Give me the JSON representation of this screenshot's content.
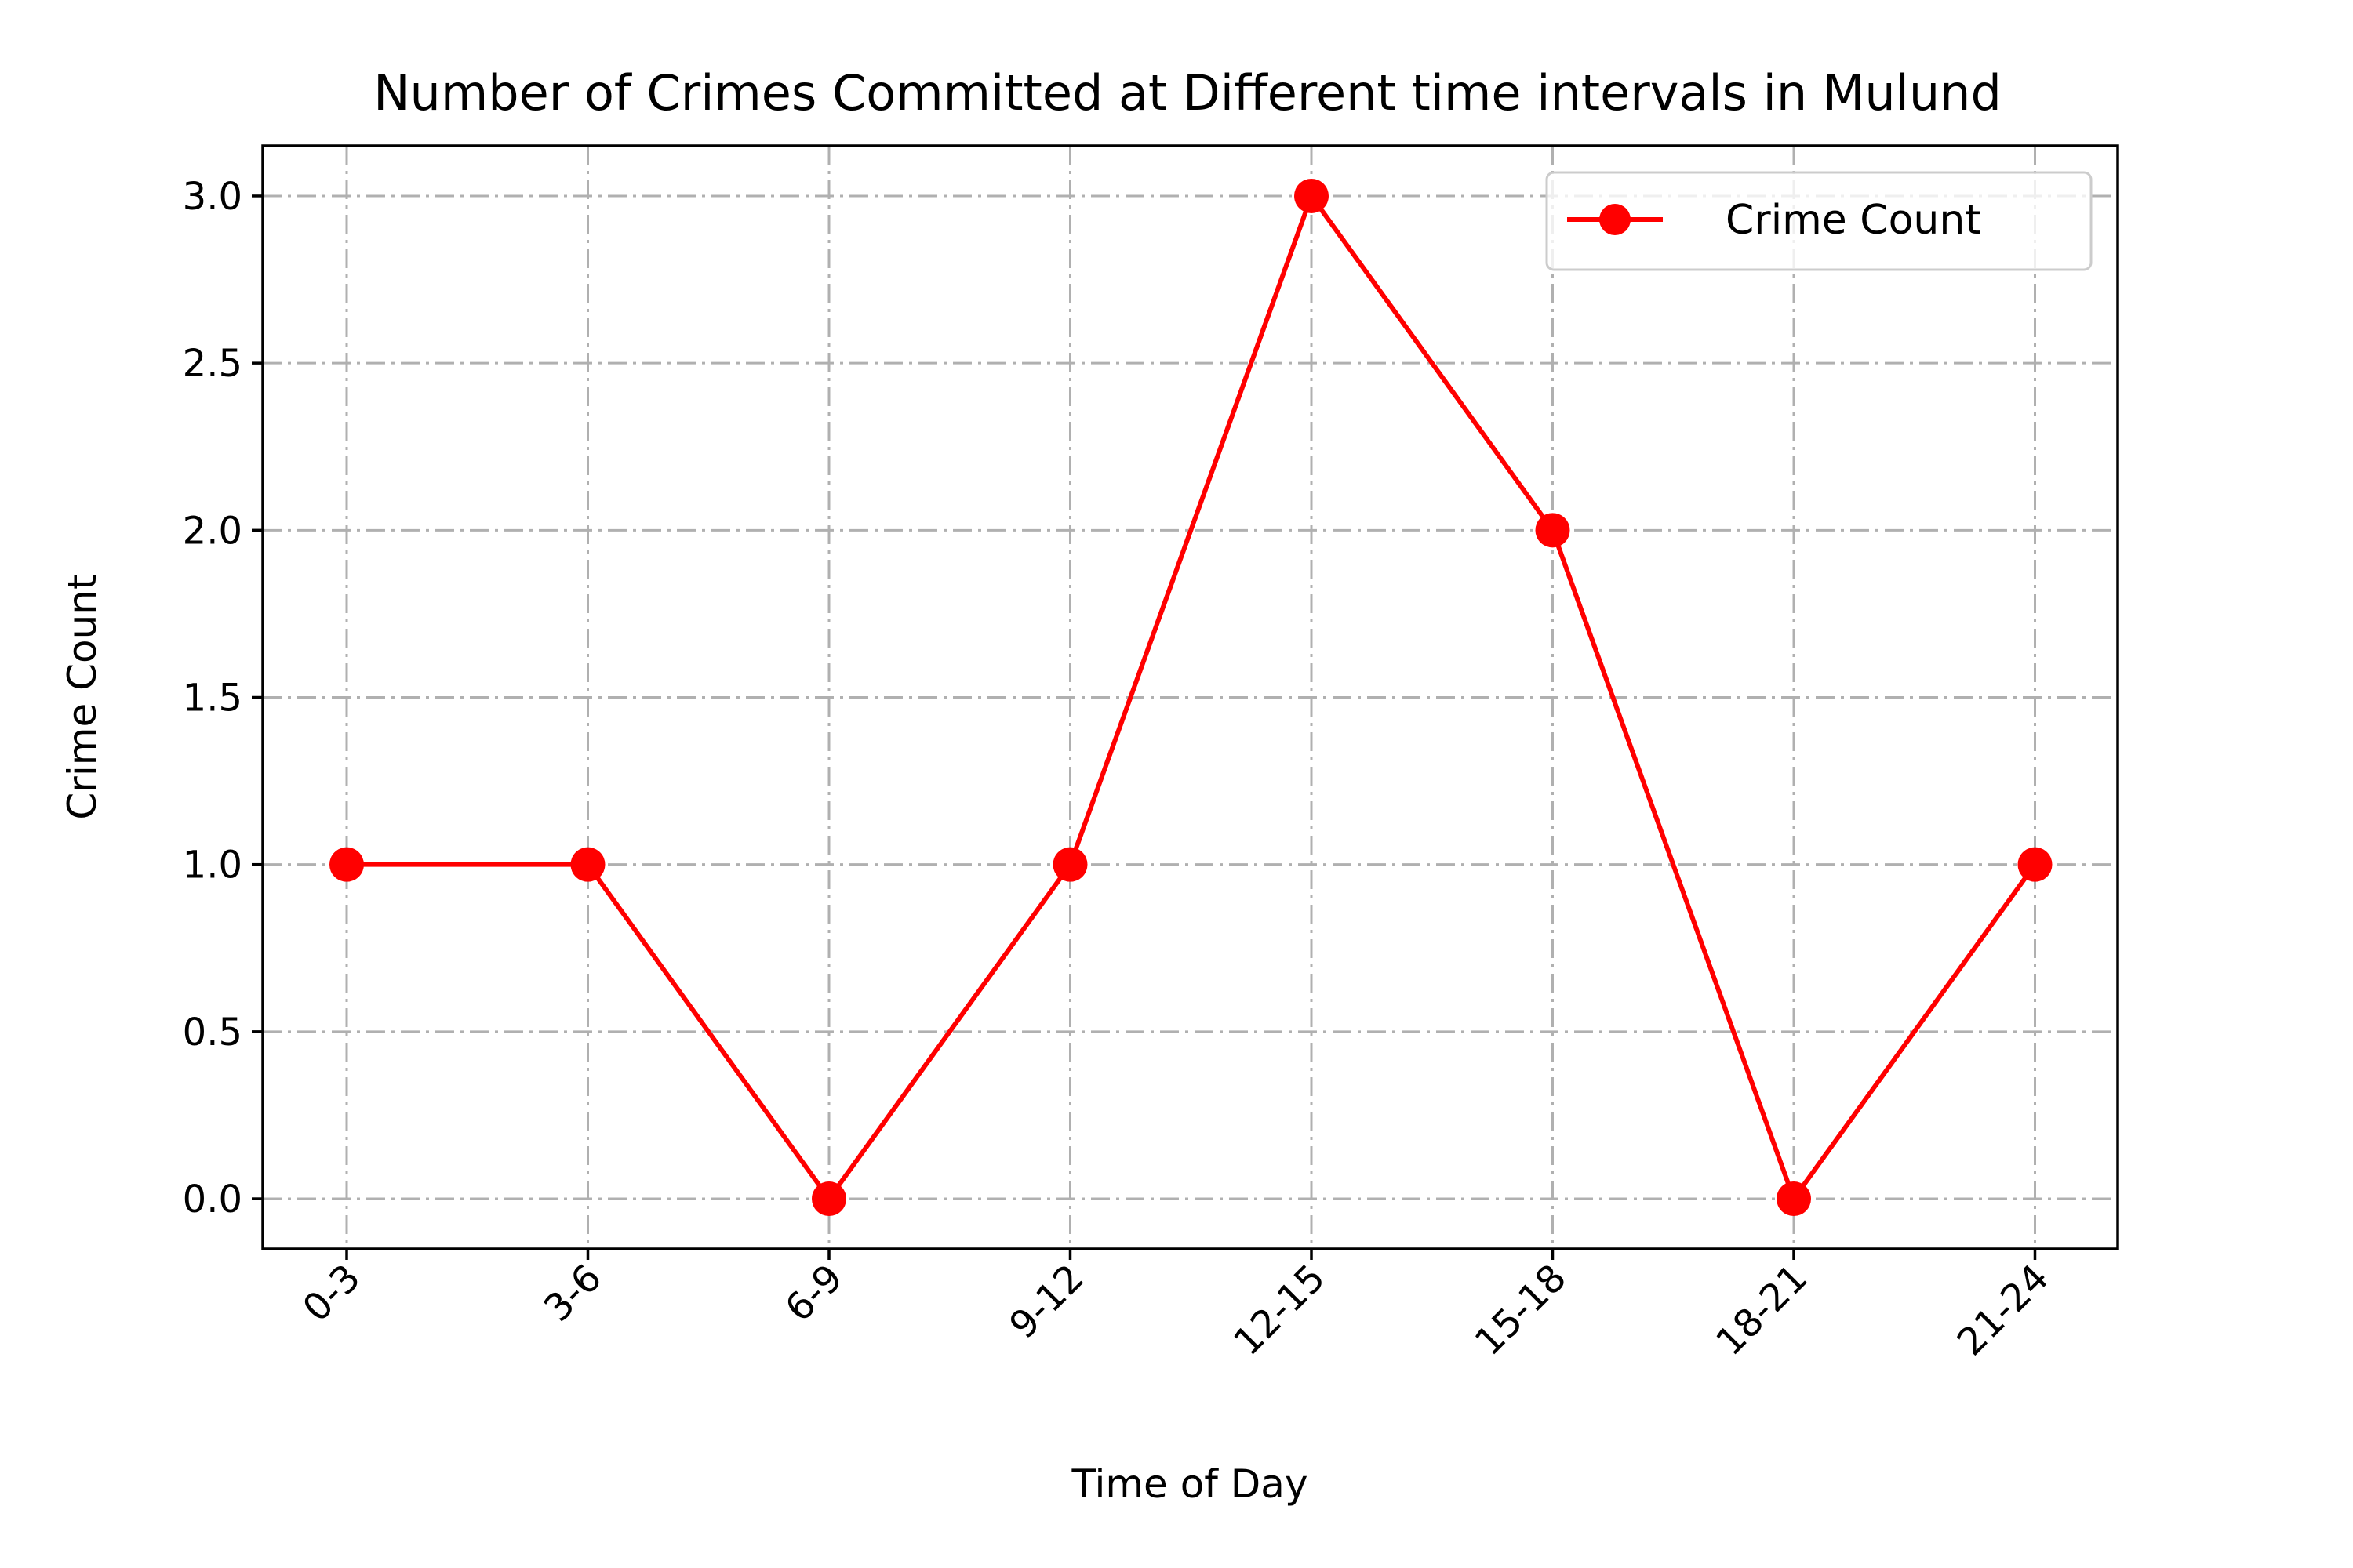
{
  "chart_data": {
    "type": "line",
    "title": "Number of Crimes Committed at Different time intervals in Mulund",
    "xlabel": "Time of Day",
    "ylabel": "Crime Count",
    "categories": [
      "0-3",
      "3-6",
      "6-9",
      "9-12",
      "12-15",
      "15-18",
      "18-21",
      "21-24"
    ],
    "series": [
      {
        "name": "Crime Count",
        "values": [
          1,
          1,
          0,
          1,
          3,
          2,
          0,
          1
        ],
        "color": "#ff0000",
        "marker": "circle"
      }
    ],
    "ylim": [
      -0.15,
      3.15
    ],
    "yticks": [
      0.0,
      0.5,
      1.0,
      1.5,
      2.0,
      2.5,
      3.0
    ],
    "ytick_labels": [
      "0.0",
      "0.5",
      "1.0",
      "1.5",
      "2.0",
      "2.5",
      "3.0"
    ],
    "grid": true,
    "grid_color": "#b0b0b0",
    "legend_position": "top-right",
    "x_tick_rotation": "45 degrees"
  }
}
